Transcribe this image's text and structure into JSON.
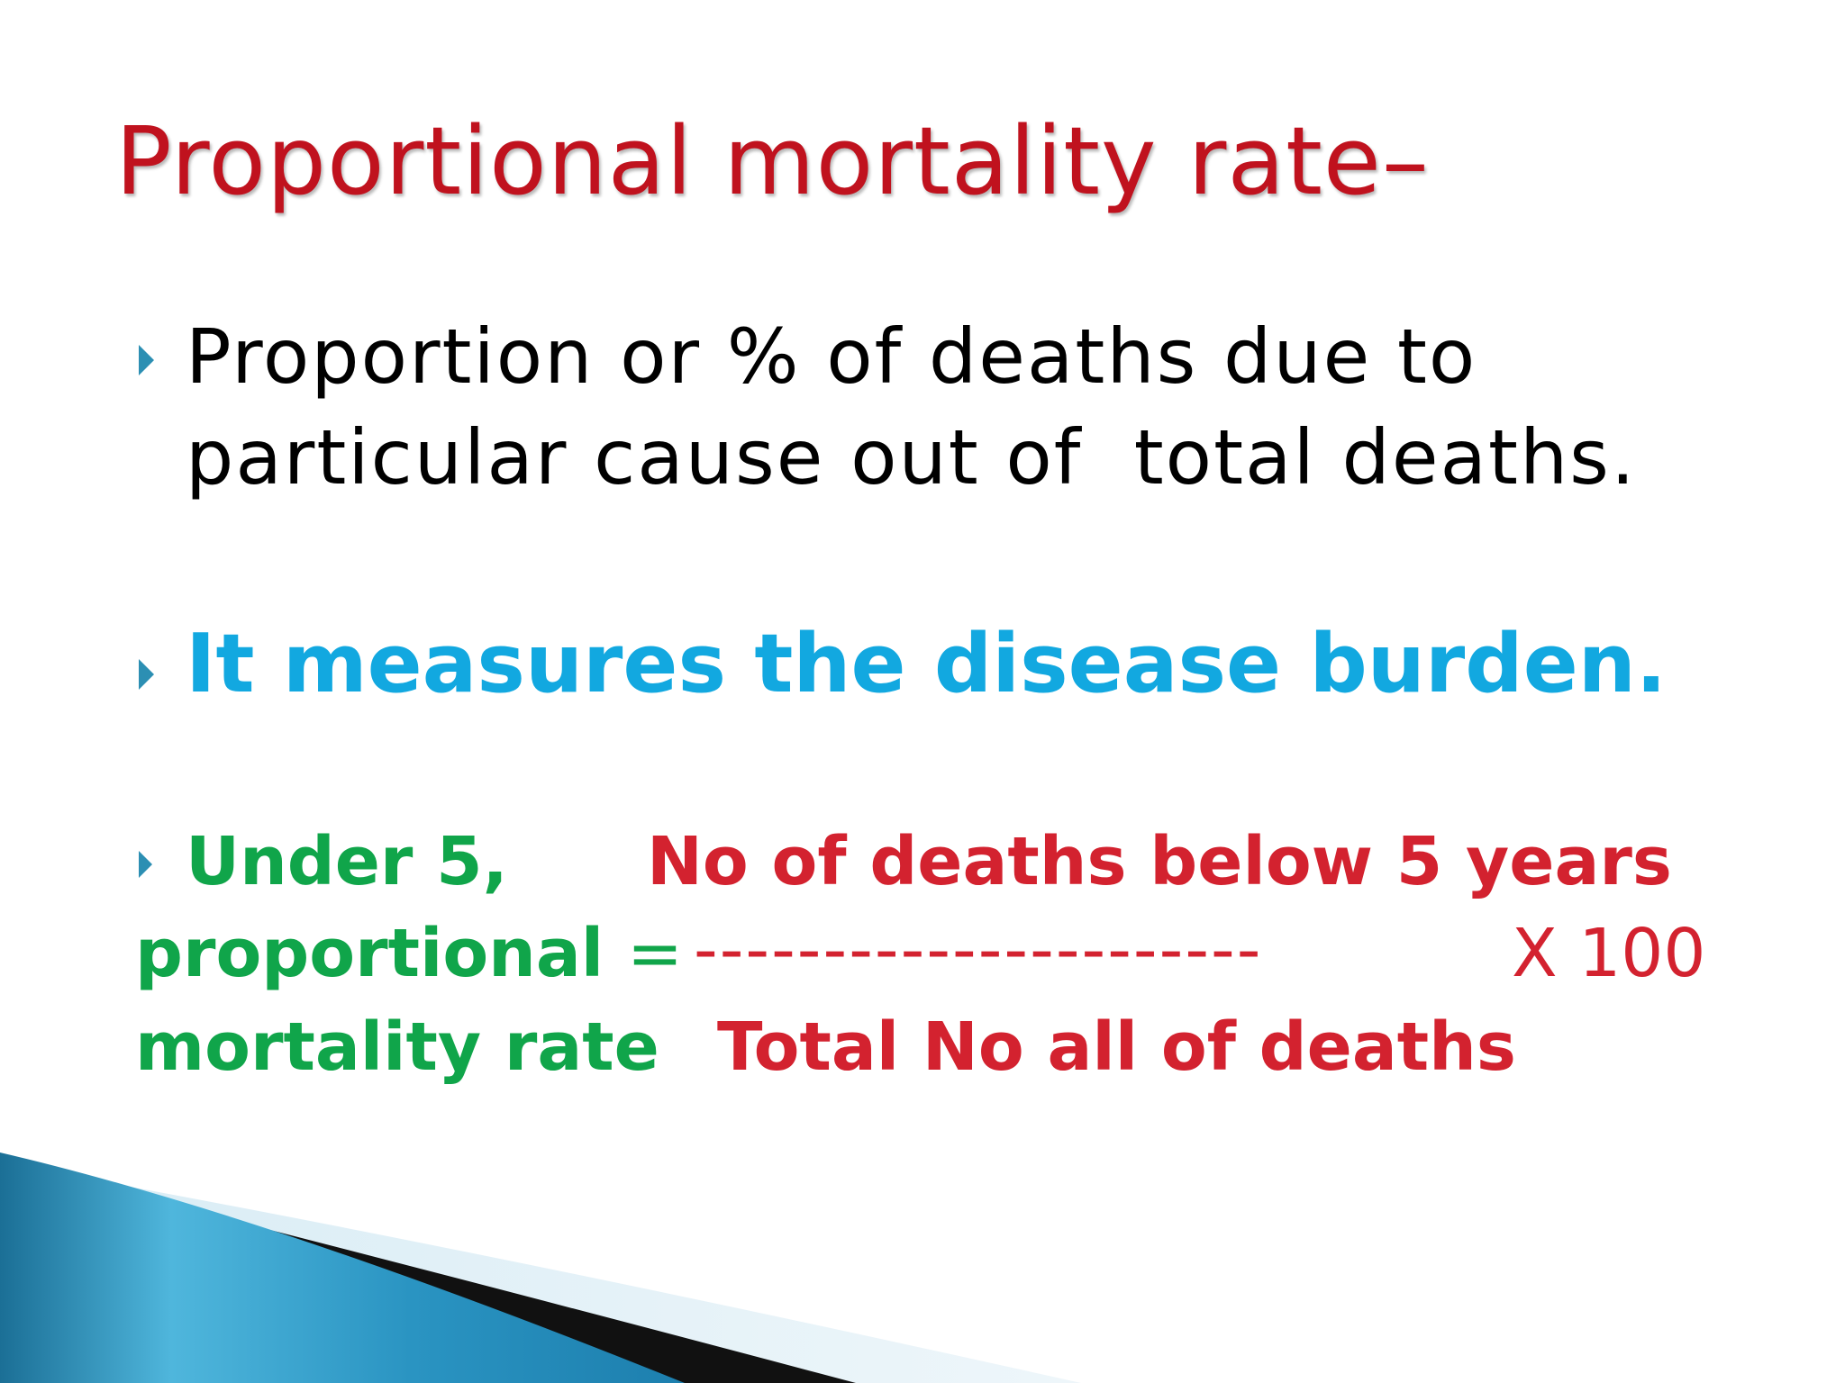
{
  "slide": {
    "title": "Proportional mortality rate–",
    "bullet1": {
      "line1": "Proportion or % of deaths due to",
      "line2": "particular cause out of  total deaths."
    },
    "bullet2": "It measures the disease burden.",
    "formula": {
      "label_line1": "Under 5,",
      "label_line2": "proportional",
      "equals": "=",
      "label_line3": "mortality rate",
      "numerator": "No of deaths below 5 years",
      "fraction_bar": "----------------------",
      "multiplier": "X 100",
      "denominator": "Total No all of deaths"
    }
  },
  "colors": {
    "title": "#c0121e",
    "bullet_arrow": "#2c8fb3",
    "body_text": "#000000",
    "highlight_blue": "#12a8e0",
    "formula_green": "#10a54a",
    "formula_red": "#d3222f",
    "swoosh_blue": "#1f8fb8"
  },
  "icons": {
    "bullet": "triangle-right-icon"
  }
}
